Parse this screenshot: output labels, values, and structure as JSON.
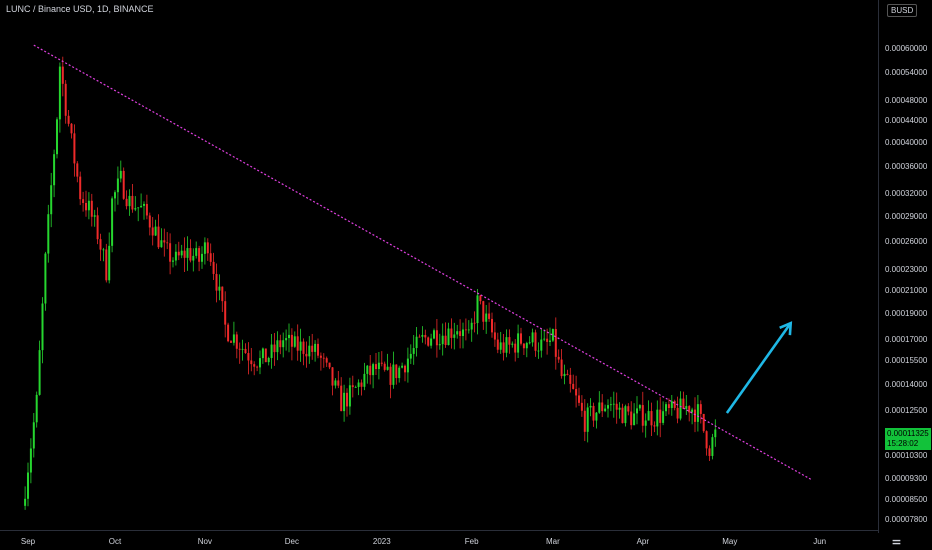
{
  "title": "LUNC / Binance USD, 1D, BINANCE",
  "currency": "BUSD",
  "last_price": "0.00011325",
  "countdown": "15:28:02",
  "colors": {
    "up": "#26d62f",
    "down": "#ee2a2a",
    "trendline": "#e040e0",
    "arrow": "#1fb8e6",
    "price_tag": "#12c23a"
  },
  "chart_data": {
    "type": "candlestick",
    "title": "LUNC / Binance USD, 1D, BINANCE",
    "y_scale": "log",
    "ylim": [
      7.5e-05,
      7e-05
    ],
    "y_ticks": [
      "0.00060000",
      "0.00054000",
      "0.00048000",
      "0.00044000",
      "0.00040000",
      "0.00036000",
      "0.00032000",
      "0.00029000",
      "0.00026000",
      "0.00023000",
      "0.00021000",
      "0.00019000",
      "0.00017000",
      "0.00015500",
      "0.00014000",
      "0.00012500",
      "0.00010300",
      "0.00009300",
      "0.00008500",
      "0.00007800"
    ],
    "x_ticks": [
      "Sep",
      "Oct",
      "Nov",
      "Dec",
      "2023",
      "Feb",
      "Mar",
      "Apr",
      "May",
      "Jun"
    ],
    "x_tick_dates": [
      "2022-09-01",
      "2022-10-01",
      "2022-11-01",
      "2022-12-01",
      "2023-01-01",
      "2023-02-01",
      "2023-03-01",
      "2023-04-01",
      "2023-05-01",
      "2023-06-01"
    ],
    "trendline": [
      {
        "date": "2022-09-03",
        "price": 0.00061
      },
      {
        "date": "2023-05-29",
        "price": 9.3e-05
      }
    ],
    "arrow": [
      {
        "date": "2023-04-30",
        "price": 0.000124
      },
      {
        "date": "2023-05-22",
        "price": 0.000183
      }
    ],
    "closes": [
      {
        "date": "2022-08-31",
        "close": 9e-05
      },
      {
        "date": "2022-09-04",
        "close": 0.00013
      },
      {
        "date": "2022-09-07",
        "close": 0.00024
      },
      {
        "date": "2022-09-09",
        "close": 0.00033
      },
      {
        "date": "2022-09-11",
        "close": 0.00045
      },
      {
        "date": "2022-09-12",
        "close": 0.00056
      },
      {
        "date": "2022-09-14",
        "close": 0.00047
      },
      {
        "date": "2022-09-16",
        "close": 0.0004
      },
      {
        "date": "2022-09-19",
        "close": 0.00032
      },
      {
        "date": "2022-09-22",
        "close": 0.0003
      },
      {
        "date": "2022-09-25",
        "close": 0.00027
      },
      {
        "date": "2022-09-28",
        "close": 0.00023
      },
      {
        "date": "2022-09-30",
        "close": 0.00031
      },
      {
        "date": "2022-10-03",
        "close": 0.00034
      },
      {
        "date": "2022-10-06",
        "close": 0.00031
      },
      {
        "date": "2022-10-10",
        "close": 0.0003
      },
      {
        "date": "2022-10-14",
        "close": 0.00028
      },
      {
        "date": "2022-10-18",
        "close": 0.00025
      },
      {
        "date": "2022-10-22",
        "close": 0.00024
      },
      {
        "date": "2022-10-26",
        "close": 0.00025
      },
      {
        "date": "2022-10-30",
        "close": 0.00024
      },
      {
        "date": "2022-11-02",
        "close": 0.00026
      },
      {
        "date": "2022-11-05",
        "close": 0.00022
      },
      {
        "date": "2022-11-08",
        "close": 0.00018
      },
      {
        "date": "2022-11-12",
        "close": 0.00017
      },
      {
        "date": "2022-11-16",
        "close": 0.00016
      },
      {
        "date": "2022-11-20",
        "close": 0.000155
      },
      {
        "date": "2022-11-24",
        "close": 0.00016
      },
      {
        "date": "2022-11-28",
        "close": 0.00017
      },
      {
        "date": "2022-12-02",
        "close": 0.000165
      },
      {
        "date": "2022-12-06",
        "close": 0.000165
      },
      {
        "date": "2022-12-10",
        "close": 0.00016
      },
      {
        "date": "2022-12-14",
        "close": 0.000145
      },
      {
        "date": "2022-12-18",
        "close": 0.00013
      },
      {
        "date": "2022-12-22",
        "close": 0.000135
      },
      {
        "date": "2022-12-26",
        "close": 0.000145
      },
      {
        "date": "2022-12-30",
        "close": 0.00015
      },
      {
        "date": "2023-01-03",
        "close": 0.000145
      },
      {
        "date": "2023-01-07",
        "close": 0.00015
      },
      {
        "date": "2023-01-11",
        "close": 0.00016
      },
      {
        "date": "2023-01-15",
        "close": 0.00017
      },
      {
        "date": "2023-01-19",
        "close": 0.000175
      },
      {
        "date": "2023-01-23",
        "close": 0.000175
      },
      {
        "date": "2023-01-27",
        "close": 0.00018
      },
      {
        "date": "2023-01-31",
        "close": 0.00017
      },
      {
        "date": "2023-02-03",
        "close": 0.0002
      },
      {
        "date": "2023-02-06",
        "close": 0.000185
      },
      {
        "date": "2023-02-10",
        "close": 0.000165
      },
      {
        "date": "2023-02-14",
        "close": 0.000165
      },
      {
        "date": "2023-02-18",
        "close": 0.00017
      },
      {
        "date": "2023-02-22",
        "close": 0.00017
      },
      {
        "date": "2023-02-26",
        "close": 0.000165
      },
      {
        "date": "2023-03-01",
        "close": 0.00017
      },
      {
        "date": "2023-03-04",
        "close": 0.000145
      },
      {
        "date": "2023-03-08",
        "close": 0.000135
      },
      {
        "date": "2023-03-12",
        "close": 0.00012
      },
      {
        "date": "2023-03-16",
        "close": 0.000125
      },
      {
        "date": "2023-03-20",
        "close": 0.00013
      },
      {
        "date": "2023-03-24",
        "close": 0.000125
      },
      {
        "date": "2023-03-28",
        "close": 0.000122
      },
      {
        "date": "2023-04-01",
        "close": 0.000123
      },
      {
        "date": "2023-04-05",
        "close": 0.000122
      },
      {
        "date": "2023-04-09",
        "close": 0.000124
      },
      {
        "date": "2023-04-13",
        "close": 0.000125
      },
      {
        "date": "2023-04-17",
        "close": 0.000128
      },
      {
        "date": "2023-04-20",
        "close": 0.000124
      },
      {
        "date": "2023-04-22",
        "close": 0.000115
      },
      {
        "date": "2023-04-24",
        "close": 0.000107
      },
      {
        "date": "2023-04-26",
        "close": 0.000113
      }
    ]
  }
}
